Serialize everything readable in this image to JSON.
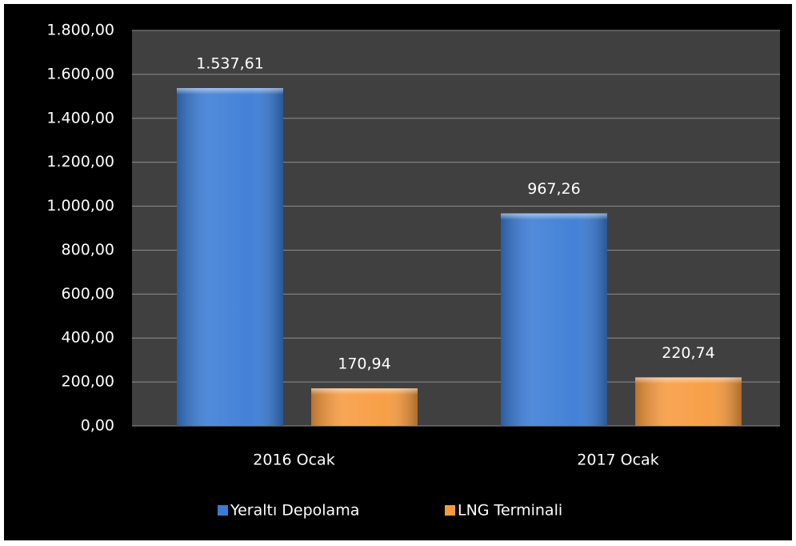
{
  "chart_data": {
    "type": "bar",
    "categories": [
      "2016 Ocak",
      "2017 Ocak"
    ],
    "series": [
      {
        "name": "Yeraltı Depolama",
        "color": "#3a7bd5",
        "values": [
          1537.61,
          967.26
        ],
        "value_labels": [
          "1.537,61",
          "967,26"
        ]
      },
      {
        "name": "LNG Terminali",
        "color": "#f79a3e",
        "values": [
          170.94,
          220.74
        ],
        "value_labels": [
          "170,94",
          "220,74"
        ]
      }
    ],
    "ylim": [
      0,
      1800
    ],
    "yticks": [
      {
        "value": 0,
        "label": "0,00"
      },
      {
        "value": 200,
        "label": "200,00"
      },
      {
        "value": 400,
        "label": "400,00"
      },
      {
        "value": 600,
        "label": "600,00"
      },
      {
        "value": 800,
        "label": "800,00"
      },
      {
        "value": 1000,
        "label": "1.000,00"
      },
      {
        "value": 1200,
        "label": "1.200,00"
      },
      {
        "value": 1400,
        "label": "1.400,00"
      },
      {
        "value": 1600,
        "label": "1.600,00"
      },
      {
        "value": 1800,
        "label": "1.800,00"
      }
    ],
    "grid": true,
    "legend": "bottom"
  }
}
